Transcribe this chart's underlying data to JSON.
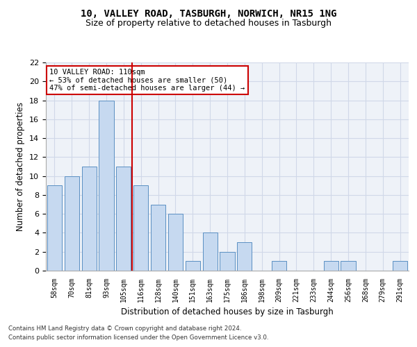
{
  "title1": "10, VALLEY ROAD, TASBURGH, NORWICH, NR15 1NG",
  "title2": "Size of property relative to detached houses in Tasburgh",
  "xlabel": "Distribution of detached houses by size in Tasburgh",
  "ylabel": "Number of detached properties",
  "categories": [
    "58sqm",
    "70sqm",
    "81sqm",
    "93sqm",
    "105sqm",
    "116sqm",
    "128sqm",
    "140sqm",
    "151sqm",
    "163sqm",
    "175sqm",
    "186sqm",
    "198sqm",
    "209sqm",
    "221sqm",
    "233sqm",
    "244sqm",
    "256sqm",
    "268sqm",
    "279sqm",
    "291sqm"
  ],
  "values": [
    9,
    10,
    11,
    18,
    11,
    9,
    7,
    6,
    1,
    4,
    2,
    3,
    0,
    1,
    0,
    0,
    1,
    1,
    0,
    0,
    1
  ],
  "bar_color": "#c6d9f0",
  "bar_edge_color": "#5a8fc2",
  "vline_x": 4.5,
  "vline_color": "#cc0000",
  "ylim": [
    0,
    22
  ],
  "yticks": [
    0,
    2,
    4,
    6,
    8,
    10,
    12,
    14,
    16,
    18,
    20,
    22
  ],
  "annotation_line1": "10 VALLEY ROAD: 110sqm",
  "annotation_line2": "← 53% of detached houses are smaller (50)",
  "annotation_line3": "47% of semi-detached houses are larger (44) →",
  "annotation_box_color": "#cc0000",
  "annotation_bg": "#ffffff",
  "footnote1": "Contains HM Land Registry data © Crown copyright and database right 2024.",
  "footnote2": "Contains public sector information licensed under the Open Government Licence v3.0.",
  "grid_color": "#d0d8e8",
  "bg_color": "#eef2f8",
  "title1_fontsize": 10,
  "title2_fontsize": 9,
  "bar_width": 0.85
}
